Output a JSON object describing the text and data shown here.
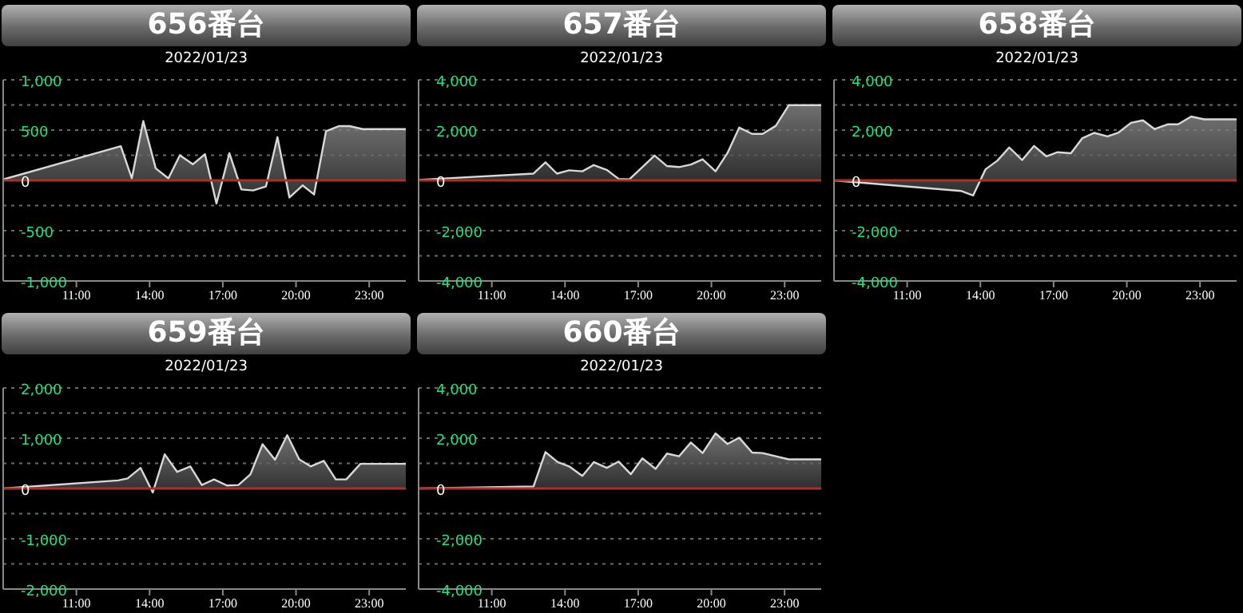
{
  "chart_data": [
    {
      "type": "area",
      "title": "656番台",
      "subtitle": "2022/01/23",
      "grid": "y",
      "xlim": [
        8,
        24.5
      ],
      "ylim": [
        -1000,
        1000
      ],
      "xticks": [
        {
          "value": 11,
          "label": "11:00"
        },
        {
          "value": 14,
          "label": "14:00"
        },
        {
          "value": 17,
          "label": "17:00"
        },
        {
          "value": 20,
          "label": "20:00"
        },
        {
          "value": 23,
          "label": "23:00"
        }
      ],
      "yticks": [
        {
          "value": 1000,
          "label": "1,000"
        },
        {
          "value": 750,
          "label": null
        },
        500,
        {
          "value": 250,
          "label": null
        },
        0,
        {
          "value": -250,
          "label": null
        },
        -500,
        {
          "value": -750,
          "label": null
        },
        {
          "value": -1000,
          "label": "-1,000"
        }
      ],
      "ref_lines": [
        {
          "axis": "y",
          "value": 0,
          "color": "#a83228"
        }
      ],
      "x": [
        8,
        12.82,
        13.27,
        13.74,
        14.25,
        14.77,
        15.24,
        15.77,
        16.27,
        16.74,
        17.27,
        17.76,
        18.24,
        18.77,
        19.24,
        19.73,
        20.27,
        20.74,
        21.23,
        21.77,
        22.2,
        22.73,
        24.5
      ],
      "series": [
        {
          "color": "#d8d8d8",
          "values": [
            10,
            340,
            20,
            590,
            120,
            20,
            250,
            160,
            260,
            -230,
            270,
            -90,
            -100,
            -60,
            430,
            -170,
            -50,
            -140,
            490,
            540,
            540,
            510,
            510
          ]
        }
      ]
    },
    {
      "type": "area",
      "title": "657番台",
      "subtitle": "2022/01/23",
      "grid": "y",
      "xlim": [
        8,
        24.5
      ],
      "ylim": [
        -4000,
        4000
      ],
      "xticks": [
        {
          "value": 11,
          "label": "11:00"
        },
        {
          "value": 14,
          "label": "14:00"
        },
        {
          "value": 17,
          "label": "17:00"
        },
        {
          "value": 20,
          "label": "20:00"
        },
        {
          "value": 23,
          "label": "23:00"
        }
      ],
      "yticks": [
        {
          "value": 4000,
          "label": "4,000"
        },
        {
          "value": 3000,
          "label": null
        },
        {
          "value": 2000,
          "label": "2,000"
        },
        {
          "value": 1000,
          "label": null
        },
        0,
        {
          "value": -1000,
          "label": null
        },
        {
          "value": -2000,
          "label": "-2,000"
        },
        {
          "value": -3000,
          "label": null
        },
        {
          "value": -4000,
          "label": "-4,000"
        }
      ],
      "ref_lines": [
        {
          "axis": "y",
          "value": 0,
          "color": "#a83228"
        }
      ],
      "x": [
        8,
        12.71,
        13.2,
        13.67,
        14.17,
        14.71,
        15.18,
        15.71,
        16.2,
        16.64,
        17.17,
        17.67,
        18.18,
        18.67,
        19.16,
        19.64,
        20.17,
        20.66,
        21.14,
        21.67,
        22.1,
        22.64,
        23.17,
        24.5
      ],
      "series": [
        {
          "color": "#d8d8d8",
          "values": [
            20,
            270,
            720,
            270,
            400,
            360,
            610,
            420,
            60,
            40,
            530,
            990,
            570,
            530,
            630,
            840,
            360,
            1090,
            2100,
            1850,
            1850,
            2170,
            2990,
            2990
          ]
        }
      ]
    },
    {
      "type": "area",
      "title": "658番台",
      "subtitle": "2022/01/23",
      "grid": "y",
      "xlim": [
        8,
        24.5
      ],
      "ylim": [
        -4000,
        4000
      ],
      "xticks": [
        {
          "value": 11,
          "label": "11:00"
        },
        {
          "value": 14,
          "label": "14:00"
        },
        {
          "value": 17,
          "label": "17:00"
        },
        {
          "value": 20,
          "label": "20:00"
        },
        {
          "value": 23,
          "label": "23:00"
        }
      ],
      "yticks": [
        {
          "value": 4000,
          "label": "4,000"
        },
        {
          "value": 3000,
          "label": null
        },
        {
          "value": 2000,
          "label": "2,000"
        },
        {
          "value": 1000,
          "label": null
        },
        0,
        {
          "value": -1000,
          "label": null
        },
        {
          "value": -2000,
          "label": "-2,000"
        },
        {
          "value": -3000,
          "label": null
        },
        {
          "value": -4000,
          "label": "-4,000"
        }
      ],
      "ref_lines": [
        {
          "axis": "y",
          "value": 0,
          "color": "#a83228"
        }
      ],
      "x": [
        8,
        13.2,
        13.7,
        14.21,
        14.7,
        15.18,
        15.71,
        16.2,
        16.7,
        17.17,
        17.71,
        18.18,
        18.67,
        19.21,
        19.64,
        20.17,
        20.66,
        21.14,
        21.67,
        22.1,
        22.64,
        23.17,
        24.5
      ],
      "series": [
        {
          "color": "#d8d8d8",
          "values": [
            0,
            -420,
            -600,
            440,
            790,
            1310,
            810,
            1370,
            960,
            1120,
            1080,
            1680,
            1890,
            1750,
            1890,
            2290,
            2390,
            2040,
            2230,
            2230,
            2540,
            2430,
            2430
          ]
        }
      ]
    },
    {
      "type": "area",
      "title": "659番台",
      "subtitle": "2022/01/23",
      "grid": "y",
      "xlim": [
        8,
        24.5
      ],
      "ylim": [
        -2000,
        2000
      ],
      "xticks": [
        {
          "value": 11,
          "label": "11:00"
        },
        {
          "value": 14,
          "label": "14:00"
        },
        {
          "value": 17,
          "label": "17:00"
        },
        {
          "value": 20,
          "label": "20:00"
        },
        {
          "value": 23,
          "label": "23:00"
        }
      ],
      "yticks": [
        {
          "value": 2000,
          "label": "2,000"
        },
        {
          "value": 1500,
          "label": null
        },
        {
          "value": 1000,
          "label": "1,000"
        },
        {
          "value": 500,
          "label": null
        },
        0,
        {
          "value": -500,
          "label": null
        },
        {
          "value": -1000,
          "label": "-1,000"
        },
        {
          "value": -1500,
          "label": null
        },
        {
          "value": -2000,
          "label": "-2,000"
        }
      ],
      "ref_lines": [
        {
          "axis": "y",
          "value": 0,
          "color": "#a83228"
        }
      ],
      "x": [
        8,
        12.71,
        13.1,
        13.63,
        14.13,
        14.62,
        15.13,
        15.67,
        16.14,
        16.64,
        17.17,
        17.64,
        18.13,
        18.63,
        19.14,
        19.64,
        20.13,
        20.6,
        21.14,
        21.63,
        22.06,
        22.64,
        24.5
      ],
      "series": [
        {
          "color": "#d8d8d8",
          "values": [
            0,
            160,
            200,
            410,
            -80,
            680,
            330,
            440,
            70,
            180,
            60,
            70,
            280,
            880,
            570,
            1060,
            580,
            440,
            550,
            180,
            180,
            490,
            490
          ]
        }
      ]
    },
    {
      "type": "area",
      "title": "660番台",
      "subtitle": "2022/01/23",
      "grid": "y",
      "xlim": [
        8,
        24.5
      ],
      "ylim": [
        -4000,
        4000
      ],
      "xticks": [
        {
          "value": 11,
          "label": "11:00"
        },
        {
          "value": 14,
          "label": "14:00"
        },
        {
          "value": 17,
          "label": "17:00"
        },
        {
          "value": 20,
          "label": "20:00"
        },
        {
          "value": 23,
          "label": "23:00"
        }
      ],
      "yticks": [
        {
          "value": 4000,
          "label": "4,000"
        },
        {
          "value": 3000,
          "label": null
        },
        {
          "value": 2000,
          "label": "2,000"
        },
        {
          "value": 1000,
          "label": null
        },
        0,
        {
          "value": -1000,
          "label": null
        },
        {
          "value": -2000,
          "label": "-2,000"
        },
        {
          "value": -3000,
          "label": null
        },
        {
          "value": -4000,
          "label": "-4,000"
        }
      ],
      "ref_lines": [
        {
          "axis": "y",
          "value": 0,
          "color": "#a83228"
        }
      ],
      "x": [
        8,
        12.71,
        13.2,
        13.7,
        14.17,
        14.71,
        15.18,
        15.71,
        16.2,
        16.7,
        17.17,
        17.71,
        18.18,
        18.67,
        19.16,
        19.64,
        20.17,
        20.66,
        21.14,
        21.67,
        22.1,
        22.64,
        23.17,
        24.5
      ],
      "series": [
        {
          "color": "#d8d8d8",
          "values": [
            0,
            80,
            1450,
            1050,
            880,
            500,
            1050,
            820,
            1070,
            570,
            1200,
            780,
            1390,
            1280,
            1830,
            1410,
            2190,
            1770,
            2020,
            1430,
            1410,
            1280,
            1160,
            1160
          ]
        }
      ]
    }
  ]
}
